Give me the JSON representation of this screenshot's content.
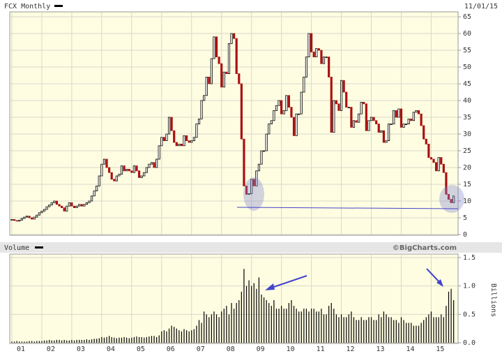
{
  "chart_data": [
    {
      "type": "candlestick",
      "title": "FCX Monthly",
      "date": "11/01/15",
      "up_color": "#000000",
      "down_color": "#aa1111",
      "grid": true,
      "ylim": [
        0,
        65
      ],
      "yticks": [
        0,
        5,
        10,
        15,
        20,
        25,
        30,
        35,
        40,
        45,
        50,
        55,
        60,
        65
      ],
      "values": [
        4.5,
        4.2,
        4.0,
        4.3,
        4.8,
        5.2,
        5.5,
        5.0,
        4.6,
        5.2,
        5.8,
        6.5,
        7.0,
        7.5,
        8.3,
        8.8,
        9.5,
        10.0,
        9.0,
        8.5,
        8.0,
        7.0,
        8.5,
        9.5,
        8.5,
        8.0,
        8.5,
        9.0,
        8.5,
        9.0,
        9.5,
        10.0,
        11.5,
        13.0,
        14.5,
        17.5,
        21.0,
        22.5,
        20.0,
        18.5,
        16.5,
        16.0,
        17.5,
        18.0,
        20.5,
        19.0,
        19.5,
        19.0,
        18.5,
        20.5,
        19.0,
        17.0,
        17.5,
        18.5,
        20.0,
        21.0,
        21.5,
        20.0,
        22.5,
        26.5,
        29.0,
        28.0,
        30.0,
        35.0,
        31.0,
        27.5,
        26.5,
        27.0,
        26.5,
        29.5,
        28.0,
        27.5,
        28.0,
        29.0,
        33.0,
        34.5,
        40.0,
        41.5,
        47.0,
        45.0,
        52.5,
        59.0,
        53.0,
        51.0,
        44.0,
        48.5,
        48.0,
        57.0,
        60.0,
        58.5,
        48.0,
        45.0,
        28.5,
        14.5,
        12.0,
        12.2,
        16.5,
        14.5,
        19.0,
        21.0,
        25.0,
        25.0,
        30.0,
        33.0,
        34.0,
        37.0,
        38.5,
        40.0,
        36.0,
        37.0,
        41.5,
        38.0,
        35.0,
        29.5,
        36.0,
        36.0,
        42.5,
        47.0,
        53.0,
        60.0,
        54.5,
        53.0,
        55.5,
        55.0,
        51.0,
        53.0,
        53.0,
        47.0,
        30.5,
        40.0,
        39.0,
        37.0,
        46.0,
        42.5,
        38.0,
        38.0,
        32.0,
        34.0,
        33.5,
        36.0,
        39.5,
        39.0,
        31.0,
        34.0,
        35.0,
        34.0,
        33.0,
        30.5,
        31.0,
        27.5,
        28.0,
        33.0,
        33.0,
        37.0,
        35.0,
        37.5,
        32.0,
        33.0,
        33.0,
        34.5,
        34.0,
        36.5,
        37.0,
        36.0,
        32.5,
        28.5,
        27.0,
        23.0,
        22.5,
        21.5,
        19.0,
        23.0,
        21.0,
        18.5,
        12.0,
        10.5,
        9.5,
        11.5
      ]
    },
    {
      "type": "bar",
      "title": "Volume",
      "credit": "©BigCharts.com",
      "ylabel": "Billions",
      "color": "#000000",
      "grid": true,
      "ylim": [
        0,
        1.5
      ],
      "yticks": [
        {
          "value": 0,
          "label": "0.0"
        },
        0.5,
        {
          "value": 1,
          "label": "1.0"
        },
        1.5
      ],
      "categories": [
        "01",
        null,
        null,
        null,
        null,
        null,
        null,
        null,
        null,
        null,
        null,
        null,
        "02",
        null,
        null,
        null,
        null,
        null,
        null,
        null,
        null,
        null,
        null,
        null,
        "03",
        null,
        null,
        null,
        null,
        null,
        null,
        null,
        null,
        null,
        null,
        null,
        "04",
        null,
        null,
        null,
        null,
        null,
        null,
        null,
        null,
        null,
        null,
        null,
        "05",
        null,
        null,
        null,
        null,
        null,
        null,
        null,
        null,
        null,
        null,
        null,
        "06",
        null,
        null,
        null,
        null,
        null,
        null,
        null,
        null,
        null,
        null,
        null,
        "07",
        null,
        null,
        null,
        null,
        null,
        null,
        null,
        null,
        null,
        null,
        null,
        "08",
        null,
        null,
        null,
        null,
        null,
        null,
        null,
        null,
        null,
        null,
        null,
        "09",
        null,
        null,
        null,
        null,
        null,
        null,
        null,
        null,
        null,
        null,
        null,
        "10",
        null,
        null,
        null,
        null,
        null,
        null,
        null,
        null,
        null,
        null,
        null,
        "11",
        null,
        null,
        null,
        null,
        null,
        null,
        null,
        null,
        null,
        null,
        null,
        "12",
        null,
        null,
        null,
        null,
        null,
        null,
        null,
        null,
        null,
        null,
        null,
        "13",
        null,
        null,
        null,
        null,
        null,
        null,
        null,
        null,
        null,
        null,
        null,
        "14",
        null,
        null,
        null,
        null,
        null,
        null,
        null,
        null,
        null,
        null,
        null,
        "15",
        null,
        null,
        null,
        null,
        null,
        null,
        null,
        null,
        null
      ],
      "values": [
        0.02,
        0.02,
        0.03,
        0.02,
        0.02,
        0.02,
        0.02,
        0.03,
        0.03,
        0.02,
        0.03,
        0.03,
        0.03,
        0.04,
        0.04,
        0.05,
        0.04,
        0.04,
        0.05,
        0.05,
        0.04,
        0.05,
        0.04,
        0.04,
        0.05,
        0.04,
        0.05,
        0.05,
        0.05,
        0.05,
        0.06,
        0.05,
        0.06,
        0.07,
        0.07,
        0.08,
        0.1,
        0.09,
        0.1,
        0.12,
        0.1,
        0.09,
        0.08,
        0.09,
        0.09,
        0.1,
        0.09,
        0.08,
        0.09,
        0.1,
        0.11,
        0.1,
        0.1,
        0.09,
        0.1,
        0.11,
        0.12,
        0.12,
        0.1,
        0.13,
        0.2,
        0.22,
        0.2,
        0.25,
        0.3,
        0.28,
        0.25,
        0.22,
        0.2,
        0.24,
        0.22,
        0.2,
        0.22,
        0.24,
        0.3,
        0.4,
        0.35,
        0.55,
        0.5,
        0.45,
        0.5,
        0.55,
        0.5,
        0.45,
        0.55,
        0.6,
        0.65,
        0.5,
        0.7,
        0.6,
        0.7,
        0.75,
        0.9,
        1.3,
        1.0,
        1.1,
        1.0,
        1.05,
        0.95,
        1.15,
        0.85,
        0.8,
        0.75,
        0.7,
        0.65,
        0.75,
        0.6,
        0.6,
        0.65,
        0.6,
        0.6,
        0.7,
        0.75,
        0.65,
        0.6,
        0.55,
        0.55,
        0.6,
        0.6,
        0.55,
        0.6,
        0.6,
        0.55,
        0.55,
        0.6,
        0.5,
        0.5,
        0.65,
        0.7,
        0.6,
        0.5,
        0.45,
        0.5,
        0.45,
        0.45,
        0.5,
        0.55,
        0.45,
        0.4,
        0.4,
        0.45,
        0.4,
        0.4,
        0.45,
        0.45,
        0.4,
        0.4,
        0.5,
        0.45,
        0.55,
        0.5,
        0.45,
        0.45,
        0.4,
        0.4,
        0.35,
        0.45,
        0.4,
        0.35,
        0.35,
        0.35,
        0.3,
        0.3,
        0.3,
        0.35,
        0.4,
        0.45,
        0.5,
        0.55,
        0.45,
        0.45,
        0.45,
        0.5,
        0.45,
        0.65,
        0.9,
        0.95,
        0.75
      ]
    }
  ]
}
